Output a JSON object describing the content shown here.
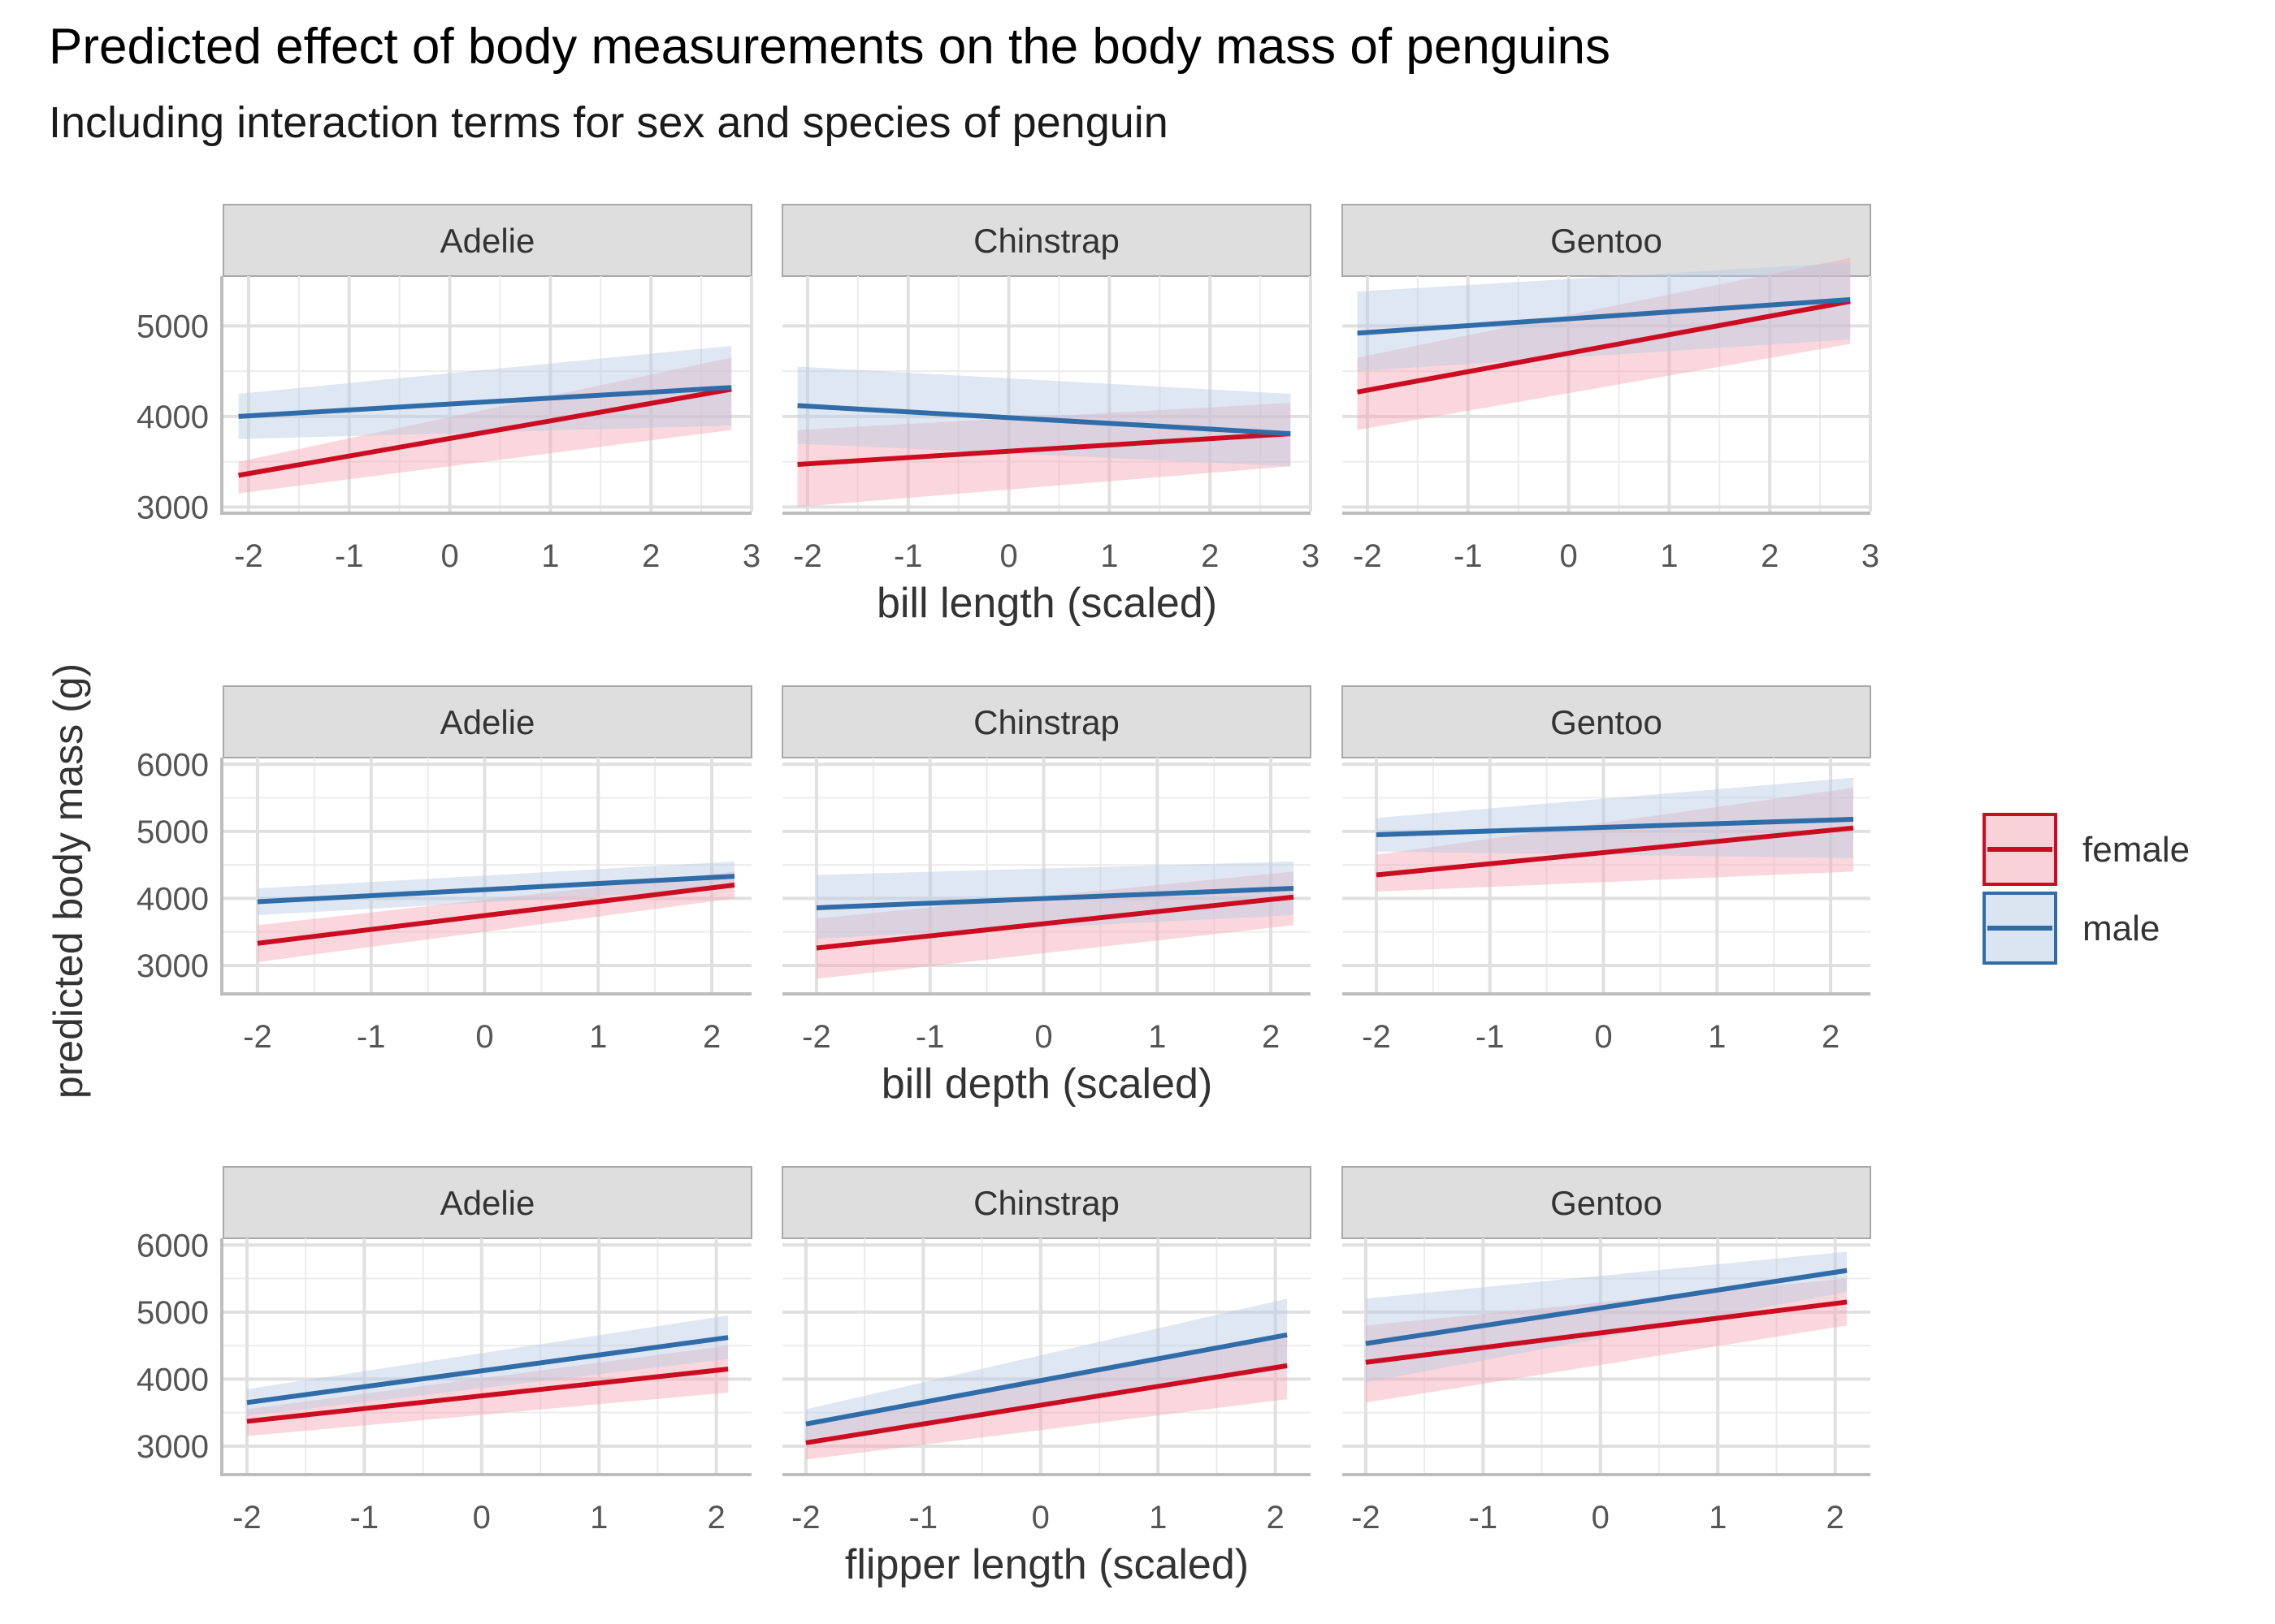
{
  "header": {
    "title": "Predicted effect of body measurements on the body mass of penguins",
    "subtitle": "Including interaction terms for sex and species of penguin"
  },
  "chart_data": {
    "type": "line",
    "title": "Predicted effect of body measurements on the body mass of penguins",
    "subtitle": "Including interaction terms for sex and species of penguin",
    "ylabel": "predicted body mass (g)",
    "facets": [
      "Adelie",
      "Chinstrap",
      "Gentoo"
    ],
    "colors": {
      "female": "#cc0c20",
      "male": "#2f6ca8",
      "female_ribbon": "#f4a6b4",
      "male_ribbon": "#b8c9e3"
    },
    "legend": {
      "placement": "right",
      "items": [
        {
          "name": "female"
        },
        {
          "name": "male"
        }
      ]
    },
    "grid": true,
    "rows": [
      {
        "xlabel": "bill length (scaled)",
        "xlim": [
          -2.25,
          3.0
        ],
        "x_ticks": [
          "-2",
          "-1",
          "0",
          "1",
          "2",
          "3"
        ],
        "ylim": [
          2950,
          5550
        ],
        "y_ticks": [
          "3000",
          "4000",
          "5000"
        ],
        "panels": [
          {
            "facet": "Adelie",
            "series": [
              {
                "name": "female",
                "x": [
                  -2.1,
                  2.8
                ],
                "y": [
                  3350,
                  4300
                ],
                "lower": [
                  3150,
                  3850
                ],
                "upper": [
                  3500,
                  4650
                ]
              },
              {
                "name": "male",
                "x": [
                  -2.1,
                  2.8
                ],
                "y": [
                  4000,
                  4320
                ],
                "lower": [
                  3750,
                  3900
                ],
                "upper": [
                  4250,
                  4780
                ]
              }
            ]
          },
          {
            "facet": "Chinstrap",
            "series": [
              {
                "name": "female",
                "x": [
                  -2.1,
                  2.8
                ],
                "y": [
                  3470,
                  3810
                ],
                "lower": [
                  3000,
                  3450
                ],
                "upper": [
                  3850,
                  4150
                ]
              },
              {
                "name": "male",
                "x": [
                  -2.1,
                  2.8
                ],
                "y": [
                  4120,
                  3810
                ],
                "lower": [
                  3700,
                  3450
                ],
                "upper": [
                  4550,
                  4250
                ]
              }
            ]
          },
          {
            "facet": "Gentoo",
            "series": [
              {
                "name": "female",
                "x": [
                  -2.1,
                  2.8
                ],
                "y": [
                  4270,
                  5270
                ],
                "lower": [
                  3850,
                  4800
                ],
                "upper": [
                  4650,
                  5750
                ]
              },
              {
                "name": "male",
                "x": [
                  -2.1,
                  2.8
                ],
                "y": [
                  4920,
                  5290
                ],
                "lower": [
                  4500,
                  4850
                ],
                "upper": [
                  5380,
                  5700
                ]
              }
            ]
          }
        ]
      },
      {
        "xlabel": "bill depth (scaled)",
        "xlim": [
          -2.3,
          2.35
        ],
        "x_ticks": [
          "-2",
          "-1",
          "0",
          "1",
          "2"
        ],
        "ylim": [
          2600,
          6100
        ],
        "y_ticks": [
          "3000",
          "4000",
          "5000",
          "6000"
        ],
        "panels": [
          {
            "facet": "Adelie",
            "series": [
              {
                "name": "female",
                "x": [
                  -2.0,
                  2.2
                ],
                "y": [
                  3330,
                  4200
                ],
                "lower": [
                  3050,
                  4000
                ],
                "upper": [
                  3600,
                  4400
                ]
              },
              {
                "name": "male",
                "x": [
                  -2.0,
                  2.2
                ],
                "y": [
                  3950,
                  4330
                ],
                "lower": [
                  3750,
                  4150
                ],
                "upper": [
                  4150,
                  4550
                ]
              }
            ]
          },
          {
            "facet": "Chinstrap",
            "series": [
              {
                "name": "female",
                "x": [
                  -2.0,
                  2.2
                ],
                "y": [
                  3260,
                  4020
                ],
                "lower": [
                  2800,
                  3600
                ],
                "upper": [
                  3700,
                  4400
                ]
              },
              {
                "name": "male",
                "x": [
                  -2.0,
                  2.2
                ],
                "y": [
                  3860,
                  4150
                ],
                "lower": [
                  3400,
                  3750
                ],
                "upper": [
                  4350,
                  4550
                ]
              }
            ]
          },
          {
            "facet": "Gentoo",
            "series": [
              {
                "name": "female",
                "x": [
                  -2.0,
                  2.2
                ],
                "y": [
                  4350,
                  5050
                ],
                "lower": [
                  4100,
                  4400
                ],
                "upper": [
                  4650,
                  5650
                ]
              },
              {
                "name": "male",
                "x": [
                  -2.0,
                  2.2
                ],
                "y": [
                  4950,
                  5180
                ],
                "lower": [
                  4700,
                  4600
                ],
                "upper": [
                  5200,
                  5800
                ]
              }
            ]
          }
        ]
      },
      {
        "xlabel": "flipper length (scaled)",
        "xlim": [
          -2.2,
          2.3
        ],
        "x_ticks": [
          "-2",
          "-1",
          "0",
          "1",
          "2"
        ],
        "ylim": [
          2600,
          6100
        ],
        "y_ticks": [
          "3000",
          "4000",
          "5000",
          "6000"
        ],
        "panels": [
          {
            "facet": "Adelie",
            "series": [
              {
                "name": "female",
                "x": [
                  -2.0,
                  2.1
                ],
                "y": [
                  3370,
                  4150
                ],
                "lower": [
                  3150,
                  3800
                ],
                "upper": [
                  3550,
                  4500
                ]
              },
              {
                "name": "male",
                "x": [
                  -2.0,
                  2.1
                ],
                "y": [
                  3650,
                  4620
                ],
                "lower": [
                  3450,
                  4300
                ],
                "upper": [
                  3850,
                  4950
                ]
              }
            ]
          },
          {
            "facet": "Chinstrap",
            "series": [
              {
                "name": "female",
                "x": [
                  -2.0,
                  2.1
                ],
                "y": [
                  3050,
                  4200
                ],
                "lower": [
                  2800,
                  3700
                ],
                "upper": [
                  3300,
                  4700
                ]
              },
              {
                "name": "male",
                "x": [
                  -2.0,
                  2.1
                ],
                "y": [
                  3330,
                  4660
                ],
                "lower": [
                  3100,
                  4150
                ],
                "upper": [
                  3550,
                  5200
                ]
              }
            ]
          },
          {
            "facet": "Gentoo",
            "series": [
              {
                "name": "female",
                "x": [
                  -2.0,
                  2.1
                ],
                "y": [
                  4250,
                  5150
                ],
                "lower": [
                  3650,
                  4800
                ],
                "upper": [
                  4800,
                  5500
                ]
              },
              {
                "name": "male",
                "x": [
                  -2.0,
                  2.1
                ],
                "y": [
                  4530,
                  5620
                ],
                "lower": [
                  3950,
                  5300
                ],
                "upper": [
                  5200,
                  5900
                ]
              }
            ]
          }
        ]
      }
    ]
  }
}
